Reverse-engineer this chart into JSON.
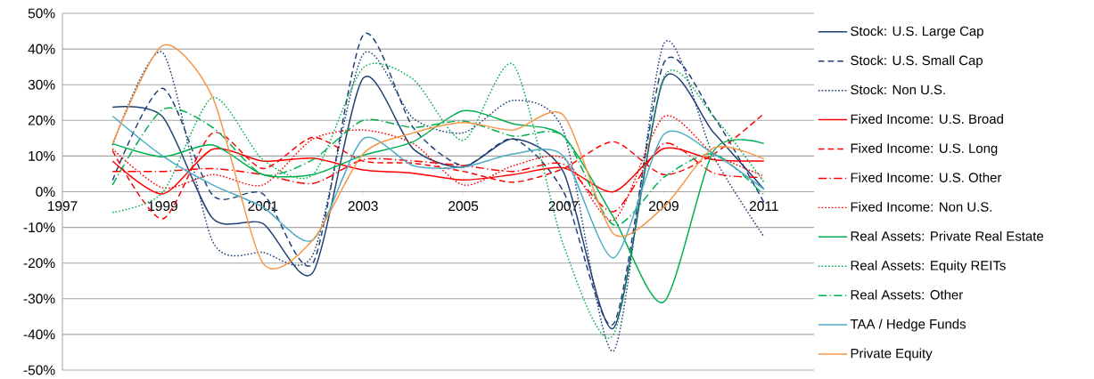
{
  "chart_data": {
    "type": "line",
    "x": [
      1998,
      1999,
      2000,
      2001,
      2002,
      2003,
      2004,
      2005,
      2006,
      2007,
      2008,
      2009,
      2010,
      2011
    ],
    "series": [
      {
        "name": "Stock: U.S. Large Cap",
        "color": "#1f3f77",
        "line_style": "solid",
        "values": [
          23.7,
          21,
          -7.5,
          -8.9,
          -22.6,
          31.8,
          12,
          6.9,
          14.8,
          5.5,
          -38.2,
          31.5,
          16.5,
          0.7
        ]
      },
      {
        "name": "Stock: U.S. Small Cap",
        "color": "#1f3f77",
        "line_style": "dashed",
        "values": [
          3.2,
          29,
          -1,
          -0.6,
          -20,
          43.9,
          18,
          7.3,
          14.8,
          0,
          -37,
          36,
          21,
          -3
        ]
      },
      {
        "name": "Stock: Non U.S.",
        "color": "#1f3f77",
        "line_style": "dotted",
        "values": [
          13,
          39,
          -14,
          -17,
          -17.6,
          38.5,
          20.6,
          16.5,
          25.6,
          17,
          -44.6,
          41.4,
          9.8,
          -12.6
        ]
      },
      {
        "name": "Fixed Income: U.S. Broad",
        "color": "#ff0000",
        "line_style": "solid",
        "values": [
          8.6,
          -0.6,
          11.9,
          8.6,
          9.4,
          6.1,
          5.2,
          3.3,
          4.8,
          6.7,
          0,
          12.1,
          9,
          8.6
        ]
      },
      {
        "name": "Fixed Income: U.S. Long",
        "color": "#ff0000",
        "line_style": "dashed",
        "values": [
          11.5,
          -7.6,
          16.5,
          6.5,
          15.2,
          8.6,
          8,
          5.7,
          2.7,
          6.5,
          14,
          4.8,
          10.6,
          21.9
        ]
      },
      {
        "name": "Fixed Income: U.S. Other",
        "color": "#ff0000",
        "line_style": "dashdot",
        "values": [
          5.7,
          5.7,
          6.5,
          4.8,
          2.3,
          9,
          8.6,
          7.3,
          5.7,
          7.7,
          -5.6,
          13.5,
          5.2,
          4
        ]
      },
      {
        "name": "Fixed Income: Non U.S.",
        "color": "#ff0000",
        "line_style": "dotted",
        "values": [
          12,
          1.1,
          4.8,
          1.9,
          14.8,
          17.3,
          13.5,
          1.9,
          7.3,
          9.4,
          -8,
          21,
          10.6,
          4.4
        ]
      },
      {
        "name": "Real Assets: Private Real Estate",
        "color": "#00b050",
        "line_style": "solid",
        "values": [
          13.5,
          9.8,
          13.1,
          4.8,
          4.8,
          10.2,
          14,
          22.7,
          19,
          15.6,
          -7.2,
          -30.9,
          11.5,
          13.5
        ]
      },
      {
        "name": "Real Assets: Equity REITs",
        "color": "#00b050",
        "line_style": "dotted",
        "values": [
          -5.8,
          -0.2,
          26.4,
          9,
          4.8,
          34.7,
          31.5,
          14.4,
          35.6,
          -15,
          -40,
          32,
          21,
          2.7
        ]
      },
      {
        "name": "Real Assets: Other",
        "color": "#00b050",
        "line_style": "dashdot",
        "values": [
          1.9,
          23,
          18,
          4.8,
          9,
          20,
          18,
          19.8,
          15.6,
          15.6,
          -9.3,
          4,
          10.6,
          -1
        ]
      },
      {
        "name": "TAA / Hedge Funds",
        "color": "#4bacc6",
        "line_style": "solid",
        "values": [
          21.2,
          10,
          1.9,
          -4.3,
          -13.5,
          14.8,
          7.3,
          6.9,
          10.6,
          10,
          -18.5,
          16,
          10.6,
          0.7
        ]
      },
      {
        "name": "Private Equity",
        "color": "#f79646",
        "line_style": "solid",
        "values": [
          13.5,
          41,
          26.4,
          -20,
          -13.5,
          10.6,
          16.5,
          19.4,
          17.3,
          21.4,
          -11.8,
          -4.3,
          12.3,
          9.2
        ]
      }
    ],
    "xlim": [
      1997,
      2012
    ],
    "xticks": [
      1997,
      1999,
      2001,
      2003,
      2005,
      2007,
      2009,
      2011
    ],
    "ylim": [
      -50,
      50
    ],
    "yticks": [
      {
        "value": -50,
        "label": "-50%"
      },
      {
        "value": -40,
        "label": "-40%"
      },
      {
        "value": -30,
        "label": "-30%"
      },
      {
        "value": -20,
        "label": "-20%"
      },
      {
        "value": -10,
        "label": "-10%"
      },
      {
        "value": 0,
        "label": "0%"
      },
      {
        "value": 10,
        "label": "10%"
      },
      {
        "value": 20,
        "label": "20%"
      },
      {
        "value": 30,
        "label": "30%"
      },
      {
        "value": 40,
        "label": "40%"
      },
      {
        "value": 50,
        "label": "50%"
      }
    ],
    "grid": "y",
    "legend": "right",
    "marker": "none"
  }
}
